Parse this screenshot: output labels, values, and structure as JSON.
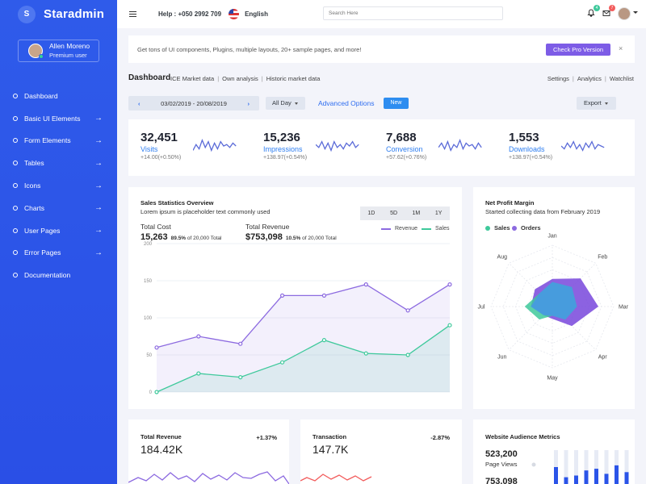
{
  "brand": {
    "letter": "S",
    "name": "Staradmin"
  },
  "profile": {
    "name": "Allen Moreno",
    "role": "Premium user"
  },
  "sidebar": {
    "items": [
      {
        "label": "Dashboard",
        "arrow": false
      },
      {
        "label": "Basic UI Elements",
        "arrow": true
      },
      {
        "label": "Form Elements",
        "arrow": true
      },
      {
        "label": "Tables",
        "arrow": true
      },
      {
        "label": "Icons",
        "arrow": true
      },
      {
        "label": "Charts",
        "arrow": true
      },
      {
        "label": "User Pages",
        "arrow": true
      },
      {
        "label": "Error Pages",
        "arrow": true
      },
      {
        "label": "Documentation",
        "arrow": false
      }
    ],
    "arrow_glyph": "→"
  },
  "topbar": {
    "help": "Help : +050 2992 709",
    "language": "English",
    "search_placeholder": "Search Here",
    "notifications_count": "4",
    "messages_count": "7"
  },
  "banner": {
    "text": "Get tons of UI components, Plugins, multiple layouts, 20+ sample pages, and more!",
    "button": "Check Pro Version",
    "close": "×"
  },
  "page_header": {
    "title": "Dashboard",
    "links": [
      "ICE Market data",
      "Own analysis",
      "Historic market data"
    ],
    "right_links": [
      "Settings",
      "Analytics",
      "Watchlist"
    ]
  },
  "filters": {
    "date_range": "03/02/2019 - 20/08/2019",
    "prev": "‹",
    "next": "›",
    "period": "All Day",
    "advanced": "Advanced Options",
    "new_label": "New",
    "export": "Export"
  },
  "stats": [
    {
      "value": "32,451",
      "label": "Visits",
      "sub": "+14.00(+0.50%)"
    },
    {
      "value": "15,236",
      "label": "Impressions",
      "sub": "+138.97(+0.54%)"
    },
    {
      "value": "7,688",
      "label": "Conversion",
      "sub": "+57.62(+0.76%)"
    },
    {
      "value": "1,553",
      "label": "Downloads",
      "sub": "+138.97(+0.54%)"
    }
  ],
  "sales": {
    "title": "Sales Statistics Overview",
    "subtitle": "Lorem ipsum is placeholder text commonly used",
    "periods": [
      "1D",
      "5D",
      "1M",
      "1Y"
    ],
    "total_cost": {
      "label": "Total Cost",
      "value": "15,263",
      "pct": "89.5%",
      "of": "of 20,000 Total"
    },
    "total_revenue": {
      "label": "Total Revenue",
      "value": "$753,098",
      "pct": "10.5%",
      "of": "of 20,000 Total"
    }
  },
  "net_profit": {
    "title": "Net Profit Margin",
    "subtitle": "Started collecting data from February 2019"
  },
  "bottom": {
    "revenue": {
      "title": "Total Revenue",
      "pct": "+1.37%",
      "value": "184.42K"
    },
    "transaction": {
      "title": "Transaction",
      "pct": "-2.87%",
      "value": "147.7K"
    },
    "audience": {
      "title": "Website Audience Metrics",
      "value1": "523,200",
      "label1": "Page Views",
      "value2": "753,098"
    }
  },
  "colors": {
    "accent": "#2e6df0",
    "revenue": "#8c6ae0",
    "sales": "#3ec99b",
    "sidebar": "#2b54e8"
  },
  "chart_data": [
    {
      "type": "line",
      "categories": [
        "",
        "",
        "",
        "",
        "",
        "",
        "",
        ""
      ],
      "series": [
        {
          "name": "Revenue",
          "values": [
            60,
            75,
            65,
            130,
            130,
            145,
            110,
            145
          ]
        },
        {
          "name": "Sales",
          "values": [
            0,
            25,
            20,
            40,
            70,
            52,
            50,
            90
          ]
        }
      ],
      "yticks": [
        0,
        50,
        100,
        150,
        200
      ],
      "ylim": [
        0,
        200
      ],
      "legend": "top-right"
    },
    {
      "type": "radar",
      "axes": [
        "Jan",
        "Feb",
        "Mar",
        "Apr",
        "May",
        "Jun",
        "Jul",
        "Aug"
      ],
      "series": [
        {
          "name": "Sales",
          "values": [
            40,
            45,
            40,
            30,
            15,
            30,
            45,
            30
          ]
        },
        {
          "name": "Orders",
          "values": [
            45,
            65,
            75,
            45,
            20,
            20,
            35,
            40
          ]
        }
      ],
      "legend": "top-left"
    },
    {
      "type": "bar",
      "series": [
        {
          "name": "",
          "values": [
            50,
            20,
            25,
            40,
            45,
            30,
            55,
            35
          ]
        }
      ]
    }
  ]
}
